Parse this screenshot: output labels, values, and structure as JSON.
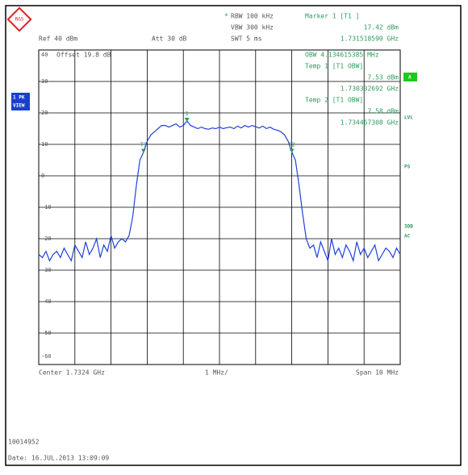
{
  "header": {
    "rbw": "RBW 100 kHz",
    "vbw": "VBW 300 kHz",
    "swt": "SWT 5 ms",
    "ref": "Ref 40 dBm",
    "att": "Att 30 dB",
    "marker_title": "Marker 1 [T1 ]",
    "marker_level": "17.42 dBm",
    "marker_freq": "1.731518590 GHz"
  },
  "readout": {
    "obw": "OBW 4.134615385 MHz",
    "temp1": "Temp 1 [T1 OBW]",
    "temp1_level": "7.53 dBm",
    "temp1_freq": "1.730332692 GHz",
    "temp2": "Temp 2 [T1 OBW]",
    "temp2_level": "7.58 dBm",
    "temp2_freq": "1.734467308 GHz",
    "offset": "Offset 19.8 dB"
  },
  "side": {
    "trace": "1 PK",
    "view": "VIEW",
    "a": "A",
    "lvl": "LVL",
    "ps": "PS",
    "db3": "3DB",
    "ac": "AC"
  },
  "footer": {
    "center": "Center 1.7324 GHz",
    "div": "1 MHz/",
    "span": "Span 10 MHz",
    "id": "10014952",
    "date": "Date: 16.JUL.2013 13:09:09"
  },
  "chart_data": {
    "type": "line",
    "ylim": [
      -60,
      40
    ],
    "yticks": [
      40,
      30,
      20,
      10,
      0,
      -10,
      -20,
      -30,
      -40,
      -50,
      -60
    ],
    "grid": true,
    "markers": [
      "1",
      "T1",
      "T2"
    ],
    "series": [
      {
        "color": "#1f3fe0",
        "values": [
          -25,
          -26,
          -24,
          -27,
          -25,
          -24,
          -26,
          -23,
          -25,
          -27,
          -22,
          -24,
          -26,
          -21,
          -25,
          -23,
          -20,
          -26,
          -22,
          -24,
          -19,
          -23,
          -21,
          -20,
          -21,
          -19,
          -13,
          -3,
          5,
          7.53,
          11,
          13,
          14,
          15,
          16,
          16,
          15.5,
          16,
          16.5,
          15.5,
          16,
          17.42,
          16,
          15.5,
          15,
          15.5,
          15,
          14.8,
          15.2,
          15,
          15.5,
          15,
          15.3,
          15.5,
          15,
          15.8,
          15.2,
          16,
          15.5,
          16,
          15.6,
          15.2,
          15.8,
          15,
          15.5,
          14.8,
          14.5,
          14,
          13,
          11,
          7.58,
          5,
          -3,
          -12,
          -20,
          -23,
          -22,
          -26,
          -21,
          -24,
          -27,
          -20,
          -25,
          -23,
          -26,
          -22,
          -24,
          -27,
          -21,
          -25,
          -23,
          -26,
          -24,
          -22,
          -27,
          -25,
          -23,
          -24,
          -26,
          -23,
          -25
        ]
      }
    ]
  }
}
